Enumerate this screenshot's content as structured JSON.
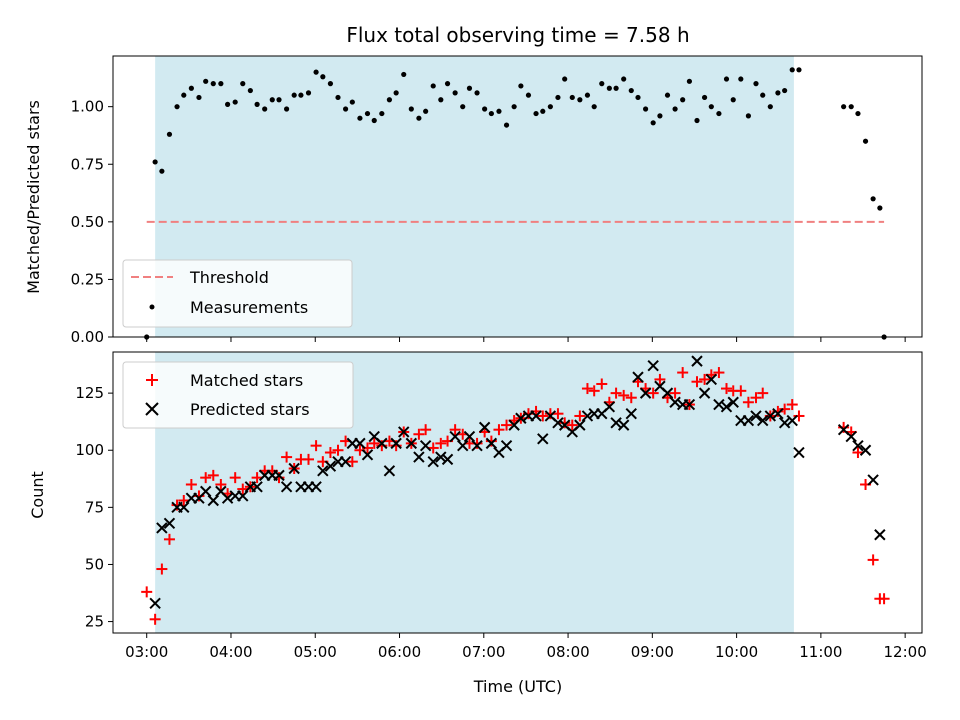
{
  "chart_data": [
    {
      "type": "scatter",
      "title": "Flux total observing time = 7.58 h",
      "ylabel": "Matched/Predicted stars",
      "xlabel": "",
      "ylim": [
        0,
        1.22
      ],
      "yticks": [
        0.0,
        0.25,
        0.5,
        0.75,
        1.0
      ],
      "ytick_labels": [
        "0.00",
        "0.25",
        "0.50",
        "0.75",
        "1.00"
      ],
      "xlim": [
        2.6,
        12.2
      ],
      "xticks": [
        3,
        4,
        5,
        6,
        7,
        8,
        9,
        10,
        11,
        12
      ],
      "xtick_labels": [
        "03:00",
        "04:00",
        "05:00",
        "06:00",
        "07:00",
        "08:00",
        "09:00",
        "10:00",
        "11:00",
        "12:00"
      ],
      "shaded_span": [
        3.1,
        10.68
      ],
      "shade_color": "#add8e6",
      "legend_position": "lower left",
      "threshold": {
        "label": "Threshold",
        "value": 0.5,
        "x": [
          3.0,
          11.75
        ],
        "color": "#f08080"
      },
      "series": [
        {
          "name": "Measurements",
          "color": "#000000",
          "x": [
            3.0,
            3.1,
            3.18,
            3.27,
            3.36,
            3.44,
            3.53,
            3.62,
            3.7,
            3.79,
            3.88,
            3.96,
            4.05,
            4.14,
            4.23,
            4.31,
            4.4,
            4.49,
            4.57,
            4.66,
            4.75,
            4.83,
            4.92,
            5.01,
            5.09,
            5.18,
            5.27,
            5.36,
            5.44,
            5.53,
            5.62,
            5.7,
            5.79,
            5.88,
            5.96,
            6.05,
            6.14,
            6.23,
            6.31,
            6.4,
            6.49,
            6.57,
            6.66,
            6.75,
            6.83,
            6.92,
            7.01,
            7.09,
            7.18,
            7.27,
            7.36,
            7.44,
            7.53,
            7.62,
            7.7,
            7.79,
            7.88,
            7.96,
            8.05,
            8.14,
            8.23,
            8.31,
            8.4,
            8.49,
            8.57,
            8.66,
            8.75,
            8.83,
            8.92,
            9.01,
            9.09,
            9.18,
            9.27,
            9.36,
            9.44,
            9.53,
            9.62,
            9.7,
            9.79,
            9.88,
            9.96,
            10.05,
            10.14,
            10.23,
            10.31,
            10.4,
            10.49,
            10.57,
            10.66,
            10.74,
            11.27,
            11.36,
            11.44,
            11.53,
            11.62,
            11.7,
            11.75
          ],
          "y": [
            0.0,
            0.76,
            0.72,
            0.88,
            1.0,
            1.05,
            1.08,
            1.04,
            1.11,
            1.1,
            1.1,
            1.01,
            1.02,
            1.1,
            1.07,
            1.01,
            0.99,
            1.03,
            1.03,
            0.99,
            1.05,
            1.05,
            1.06,
            1.15,
            1.13,
            1.1,
            1.04,
            0.99,
            1.02,
            0.95,
            0.97,
            0.94,
            0.97,
            1.03,
            1.06,
            1.14,
            0.99,
            0.95,
            0.98,
            1.09,
            1.03,
            1.1,
            1.06,
            1.0,
            1.08,
            1.06,
            0.99,
            0.97,
            0.98,
            0.92,
            1.0,
            1.09,
            1.05,
            0.97,
            0.98,
            1.0,
            1.04,
            1.12,
            1.04,
            1.03,
            1.05,
            1.0,
            1.1,
            1.08,
            1.08,
            1.12,
            1.07,
            1.04,
            0.99,
            0.93,
            0.96,
            1.05,
            0.99,
            1.03,
            1.11,
            0.94,
            1.04,
            1.0,
            0.97,
            1.12,
            1.03,
            1.12,
            0.96,
            1.1,
            1.05,
            1.0,
            1.06,
            1.07,
            1.16,
            1.16,
            1.0,
            1.0,
            0.97,
            0.85,
            0.6,
            0.56,
            0.0
          ]
        }
      ]
    },
    {
      "type": "scatter",
      "title": "",
      "ylabel": "Count",
      "xlabel": "Time (UTC)",
      "ylim": [
        20,
        143
      ],
      "yticks": [
        25,
        50,
        75,
        100,
        125
      ],
      "ytick_labels": [
        "25",
        "50",
        "75",
        "100",
        "125"
      ],
      "xlim": [
        2.6,
        12.2
      ],
      "xticks": [
        3,
        4,
        5,
        6,
        7,
        8,
        9,
        10,
        11,
        12
      ],
      "xtick_labels": [
        "03:00",
        "04:00",
        "05:00",
        "06:00",
        "07:00",
        "08:00",
        "09:00",
        "10:00",
        "11:00",
        "12:00"
      ],
      "shaded_span": [
        3.1,
        10.68
      ],
      "shade_color": "#add8e6",
      "legend_position": "upper left",
      "series": [
        {
          "name": "Matched stars",
          "marker": "plus",
          "color": "#ff0000",
          "x": [
            3.0,
            3.1,
            3.18,
            3.27,
            3.36,
            3.44,
            3.53,
            3.62,
            3.7,
            3.79,
            3.88,
            3.96,
            4.05,
            4.14,
            4.23,
            4.31,
            4.4,
            4.49,
            4.57,
            4.66,
            4.75,
            4.83,
            4.92,
            5.01,
            5.09,
            5.18,
            5.27,
            5.36,
            5.44,
            5.53,
            5.62,
            5.7,
            5.79,
            5.88,
            5.96,
            6.05,
            6.14,
            6.23,
            6.31,
            6.4,
            6.49,
            6.57,
            6.66,
            6.75,
            6.83,
            6.92,
            7.01,
            7.09,
            7.18,
            7.27,
            7.36,
            7.44,
            7.53,
            7.62,
            7.7,
            7.79,
            7.88,
            7.96,
            8.05,
            8.14,
            8.23,
            8.31,
            8.4,
            8.49,
            8.57,
            8.66,
            8.75,
            8.83,
            8.92,
            9.01,
            9.09,
            9.18,
            9.27,
            9.36,
            9.44,
            9.53,
            9.62,
            9.7,
            9.79,
            9.88,
            9.96,
            10.05,
            10.14,
            10.23,
            10.31,
            10.4,
            10.49,
            10.57,
            10.66,
            10.74,
            11.27,
            11.36,
            11.44,
            11.53,
            11.62,
            11.7,
            11.75
          ],
          "y": [
            38,
            26,
            48,
            61,
            76,
            78,
            85,
            80,
            88,
            89,
            85,
            81,
            88,
            83,
            84,
            88,
            91,
            91,
            88,
            97,
            92,
            96,
            96,
            102,
            95,
            99,
            100,
            104,
            95,
            100,
            101,
            103,
            102,
            104,
            102,
            108,
            103,
            107,
            109,
            101,
            103,
            104,
            109,
            107,
            103,
            103,
            108,
            104,
            109,
            111,
            113,
            114,
            116,
            117,
            115,
            116,
            116,
            112,
            111,
            115,
            127,
            126,
            129,
            121,
            125,
            124,
            123,
            130,
            127,
            125,
            131,
            123,
            125,
            134,
            120,
            130,
            131,
            133,
            134,
            127,
            126,
            126,
            121,
            123,
            125,
            115,
            117,
            118,
            120,
            115,
            110,
            108,
            99,
            85,
            52,
            35,
            35
          ]
        },
        {
          "name": "Predicted stars",
          "marker": "x",
          "color": "#000000",
          "x": [
            3.1,
            3.18,
            3.27,
            3.36,
            3.44,
            3.53,
            3.62,
            3.7,
            3.79,
            3.88,
            3.96,
            4.05,
            4.14,
            4.23,
            4.31,
            4.4,
            4.49,
            4.57,
            4.66,
            4.75,
            4.83,
            4.92,
            5.01,
            5.09,
            5.18,
            5.27,
            5.36,
            5.44,
            5.53,
            5.62,
            5.7,
            5.79,
            5.88,
            5.96,
            6.05,
            6.14,
            6.23,
            6.31,
            6.4,
            6.49,
            6.57,
            6.66,
            6.75,
            6.83,
            6.92,
            7.01,
            7.09,
            7.18,
            7.27,
            7.36,
            7.44,
            7.53,
            7.62,
            7.7,
            7.79,
            7.88,
            7.96,
            8.05,
            8.14,
            8.23,
            8.31,
            8.4,
            8.49,
            8.57,
            8.66,
            8.75,
            8.83,
            8.92,
            9.01,
            9.09,
            9.18,
            9.27,
            9.36,
            9.44,
            9.53,
            9.62,
            9.7,
            9.79,
            9.88,
            9.96,
            10.05,
            10.14,
            10.23,
            10.31,
            10.4,
            10.49,
            10.57,
            10.66,
            10.74,
            11.27,
            11.36,
            11.44,
            11.53,
            11.62,
            11.7
          ],
          "y": [
            33,
            66,
            68,
            75,
            75,
            79,
            79,
            82,
            78,
            82,
            79,
            80,
            80,
            84,
            84,
            89,
            89,
            89,
            84,
            92,
            84,
            84,
            84,
            91,
            93,
            95,
            95,
            103,
            103,
            98,
            106,
            103,
            91,
            103,
            108,
            103,
            97,
            102,
            95,
            97,
            96,
            106,
            102,
            106,
            102,
            110,
            103,
            99,
            102,
            111,
            114,
            115,
            115,
            105,
            115,
            112,
            111,
            108,
            111,
            115,
            116,
            116,
            119,
            112,
            111,
            116,
            132,
            125,
            137,
            128,
            125,
            121,
            120,
            120,
            139,
            125,
            131,
            120,
            119,
            121,
            113,
            113,
            115,
            113,
            115,
            116,
            112,
            113,
            99,
            109,
            106,
            102,
            100,
            87,
            63
          ]
        }
      ]
    }
  ]
}
